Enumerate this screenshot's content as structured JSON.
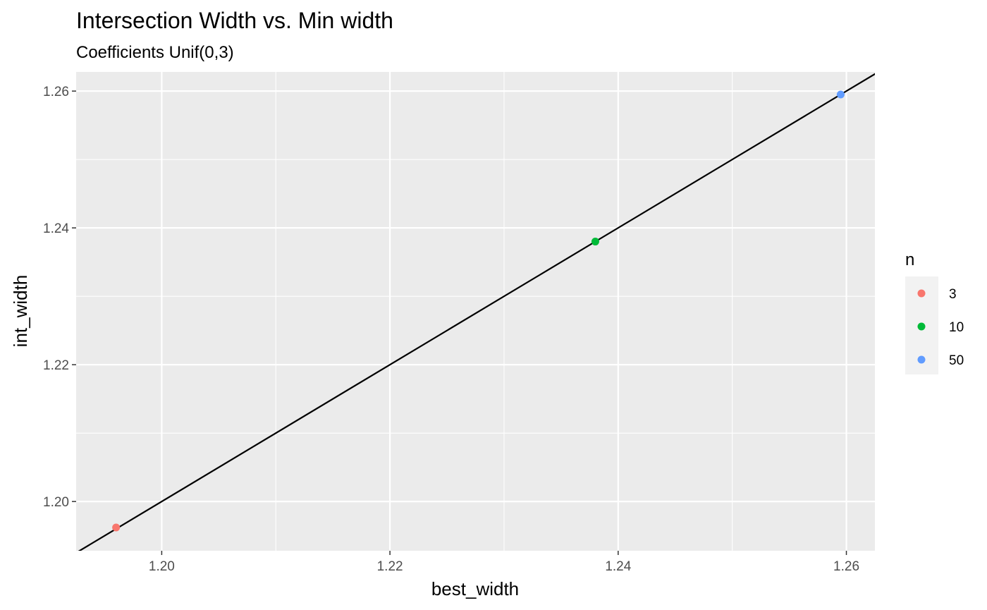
{
  "chart_data": {
    "type": "scatter",
    "title": "Intersection Width vs. Min width",
    "subtitle": "Coefficients Unif(0,3)",
    "xlabel": "best_width",
    "ylabel": "int_width",
    "xlim": [
      1.1925,
      1.2625
    ],
    "ylim": [
      1.1928,
      1.2628
    ],
    "x_ticks": [
      1.2,
      1.22,
      1.24,
      1.26
    ],
    "x_tick_labels": [
      "1.20",
      "1.22",
      "1.24",
      "1.26"
    ],
    "x_minor_ticks": [
      1.21,
      1.23,
      1.25
    ],
    "y_ticks": [
      1.2,
      1.22,
      1.24,
      1.26
    ],
    "y_tick_labels": [
      "1.20",
      "1.22",
      "1.24",
      "1.26"
    ],
    "y_minor_ticks": [
      1.21,
      1.23,
      1.25
    ],
    "grid": true,
    "legend_title": "n",
    "legend_position": "right",
    "series": [
      {
        "name": "3",
        "color": "#F8766D",
        "points": [
          {
            "x": 1.196,
            "y": 1.1962
          }
        ]
      },
      {
        "name": "10",
        "color": "#00BA38",
        "points": [
          {
            "x": 1.238,
            "y": 1.238
          }
        ]
      },
      {
        "name": "50",
        "color": "#619CFF",
        "points": [
          {
            "x": 1.2595,
            "y": 1.2595
          }
        ]
      }
    ],
    "reference_line": {
      "type": "identity",
      "slope": 1,
      "intercept": 0,
      "color": "#000000"
    },
    "panel_background": "#EBEBEB",
    "grid_color": "#FFFFFF"
  }
}
